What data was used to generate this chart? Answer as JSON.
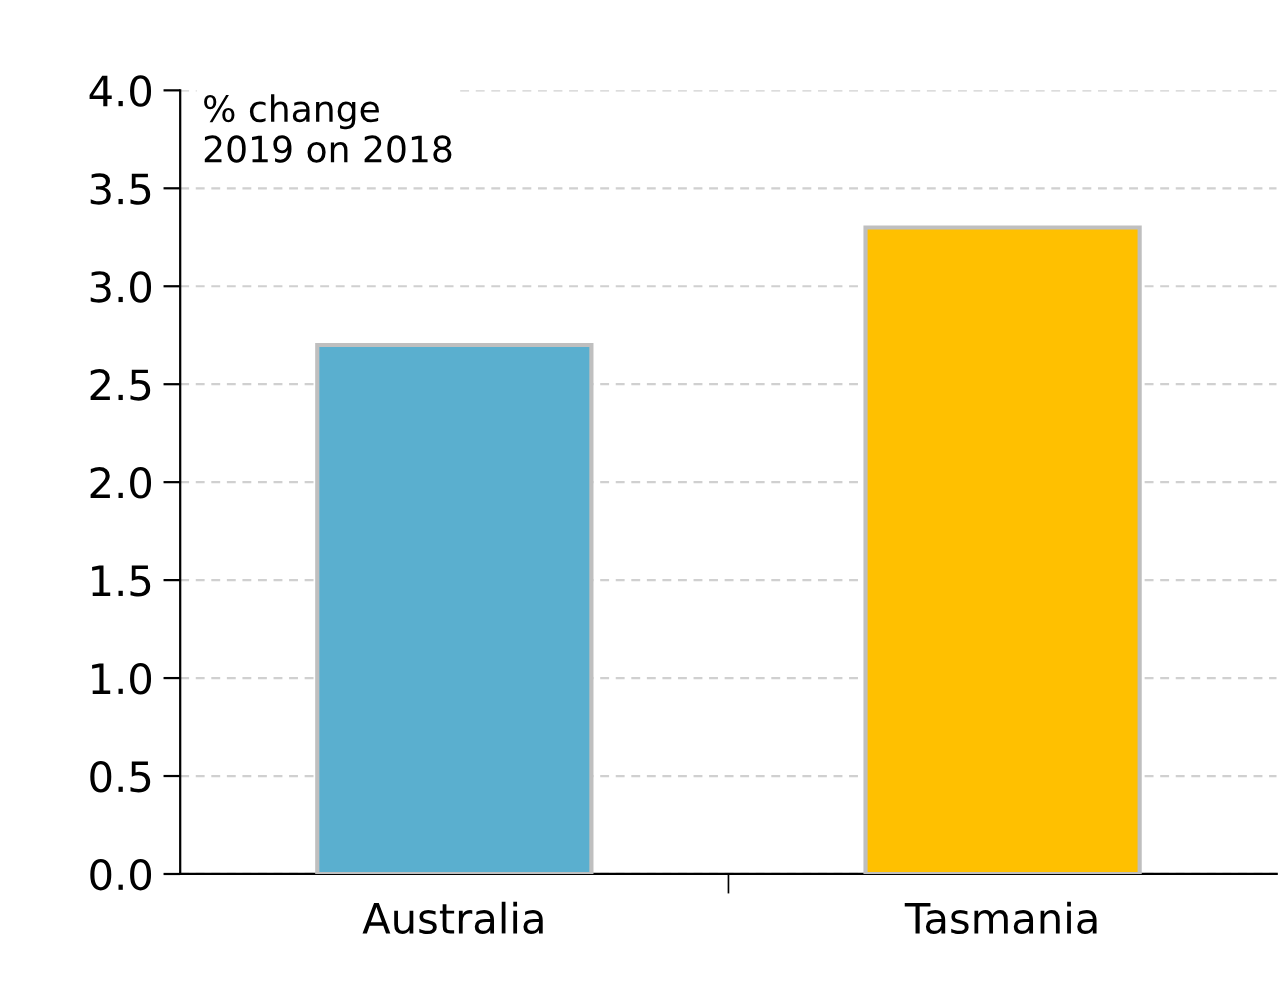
{
  "chart_data": {
    "type": "bar",
    "ylabel": "% change\n2019 on 2018",
    "categories": [
      "Australia",
      "Tasmania"
    ],
    "values": [
      2.7,
      3.3
    ],
    "colors": [
      "#5aafcf",
      "#ffc000"
    ],
    "ylim": [
      0,
      4
    ],
    "yticks": [
      {
        "value": 0,
        "label": "0.0"
      },
      {
        "value": 0.5,
        "label": "0.5"
      },
      {
        "value": 1,
        "label": "1.0"
      },
      {
        "value": 1.5,
        "label": "1.5"
      },
      {
        "value": 2,
        "label": "2.0"
      },
      {
        "value": 2.5,
        "label": "2.5"
      },
      {
        "value": 3,
        "label": "3.0"
      },
      {
        "value": 3.5,
        "label": "3.5"
      },
      {
        "value": 4,
        "label": "4.0"
      }
    ],
    "grid": "y"
  }
}
